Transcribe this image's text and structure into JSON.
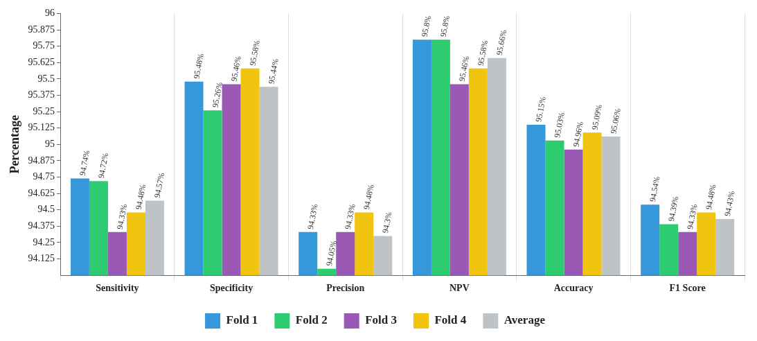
{
  "chart_data": {
    "type": "bar",
    "ylabel": "Percentage",
    "categories": [
      "Sensitivity",
      "Specificity",
      "Precision",
      "NPV",
      "Accuracy",
      "F1 Score"
    ],
    "series": [
      {
        "name": "Fold 1",
        "color": "#3498db",
        "values": [
          94.74,
          95.48,
          94.33,
          95.8,
          95.15,
          94.54
        ],
        "value_labels": [
          "94.74%",
          "95.48%",
          "94.33%",
          "95.8%",
          "95.15%",
          "94.54%"
        ]
      },
      {
        "name": "Fold 2",
        "color": "#2ecc71",
        "values": [
          94.72,
          95.26,
          94.05,
          95.8,
          95.03,
          94.39
        ],
        "value_labels": [
          "94.72%",
          "95.26%",
          "94.05%",
          "95.8%",
          "95.03%",
          "94.39%"
        ]
      },
      {
        "name": "Fold 3",
        "color": "#9b59b6",
        "values": [
          94.33,
          95.46,
          94.33,
          95.46,
          94.96,
          94.33
        ],
        "value_labels": [
          "94.33%",
          "95.46%",
          "94.33%",
          "95.46%",
          "94.96%",
          "94.33%"
        ]
      },
      {
        "name": "Fold 4",
        "color": "#f1c40f",
        "values": [
          94.48,
          95.58,
          94.48,
          95.58,
          95.09,
          94.48
        ],
        "value_labels": [
          "94.48%",
          "95.58%",
          "94.48%",
          "95.58%",
          "95.09%",
          "94.48%"
        ]
      },
      {
        "name": "Average",
        "color": "#bdc3c7",
        "values": [
          94.57,
          95.44,
          94.3,
          95.66,
          95.06,
          94.43
        ],
        "value_labels": [
          "94.57%",
          "95.44%",
          "94.3%",
          "95.66%",
          "95.06%",
          "94.43%"
        ]
      }
    ],
    "ylim": [
      94,
      96
    ],
    "yticks": [
      94.125,
      94.25,
      94.375,
      94.5,
      94.625,
      94.75,
      94.875,
      95,
      95.125,
      95.25,
      95.375,
      95.5,
      95.625,
      95.75,
      95.875,
      96
    ],
    "grid": "x",
    "legend": "bottom"
  }
}
